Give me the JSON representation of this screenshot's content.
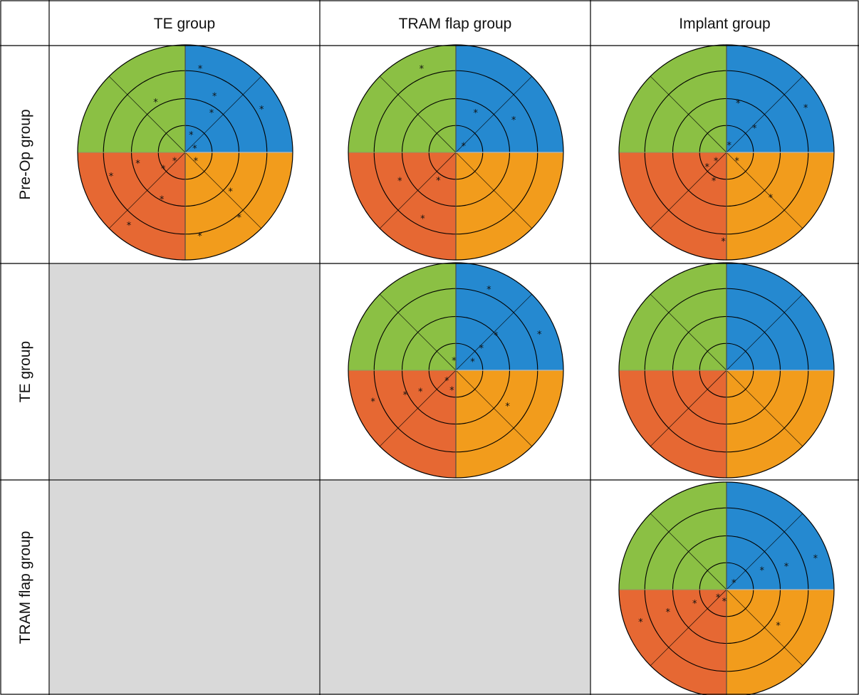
{
  "colors": {
    "q1": "#2589d0",
    "q2": "#8bc044",
    "q3": "#e66833",
    "q4": "#f29c1c",
    "empty_cell": "#d9d9d9",
    "grid": "#000000",
    "mark": "#111111"
  },
  "table": {
    "corner_label": "",
    "columns": [
      "TE group",
      "TRAM flap group",
      "Implant group"
    ],
    "rows": [
      "Pre-Op group",
      "TE group",
      "TRAM flap group"
    ]
  },
  "asterisk": "*",
  "cells": [
    [
      {
        "empty": false,
        "marks": [
          [
            0.8,
            80
          ],
          [
            0.45,
            57
          ],
          [
            0.18,
            72
          ],
          [
            0.1,
            28
          ],
          [
            0.82,
            30
          ],
          [
            0.6,
            63
          ],
          [
            0.55,
            120
          ],
          [
            0.12,
            215
          ],
          [
            0.12,
            325
          ],
          [
            0.45,
            192
          ],
          [
            0.72,
            197
          ],
          [
            0.25,
            215
          ],
          [
            0.48,
            243
          ],
          [
            0.85,
            232
          ],
          [
            0.78,
            280
          ],
          [
            0.55,
            320
          ],
          [
            0.78,
            310
          ]
        ]
      },
      {
        "empty": false,
        "marks": [
          [
            0.85,
            112
          ],
          [
            0.42,
            64
          ],
          [
            0.1,
            44
          ],
          [
            0.62,
            30
          ],
          [
            0.58,
            206
          ],
          [
            0.3,
            237
          ],
          [
            0.68,
            243
          ]
        ]
      },
      {
        "empty": false,
        "marks": [
          [
            0.48,
            77
          ],
          [
            0.85,
            30
          ],
          [
            0.08,
            72
          ],
          [
            0.12,
            324
          ],
          [
            0.35,
            42
          ],
          [
            0.12,
            215
          ],
          [
            0.22,
            215
          ],
          [
            0.28,
            245
          ],
          [
            0.58,
            315
          ],
          [
            0.82,
            268
          ]
        ]
      }
    ],
    [
      {
        "empty": true,
        "marks": []
      },
      {
        "empty": false,
        "marks": [
          [
            0.82,
            68
          ],
          [
            0.85,
            24
          ],
          [
            0.5,
            42
          ],
          [
            0.32,
            42
          ],
          [
            0.18,
            30
          ],
          [
            0.1,
            100
          ],
          [
            0.12,
            226
          ],
          [
            0.18,
            258
          ],
          [
            0.38,
            210
          ],
          [
            0.52,
            205
          ],
          [
            0.82,
            200
          ],
          [
            0.58,
            326
          ]
        ]
      },
      {
        "empty": false,
        "marks": []
      }
    ],
    [
      {
        "empty": true,
        "marks": []
      },
      {
        "empty": true,
        "marks": []
      },
      {
        "empty": false,
        "marks": [
          [
            0.88,
            20
          ],
          [
            0.6,
            22
          ],
          [
            0.38,
            30
          ],
          [
            0.1,
            48
          ],
          [
            0.1,
            218
          ],
          [
            0.1,
            258
          ],
          [
            0.32,
            202
          ],
          [
            0.58,
            200
          ],
          [
            0.85,
            200
          ],
          [
            0.58,
            326
          ]
        ]
      }
    ]
  ]
}
